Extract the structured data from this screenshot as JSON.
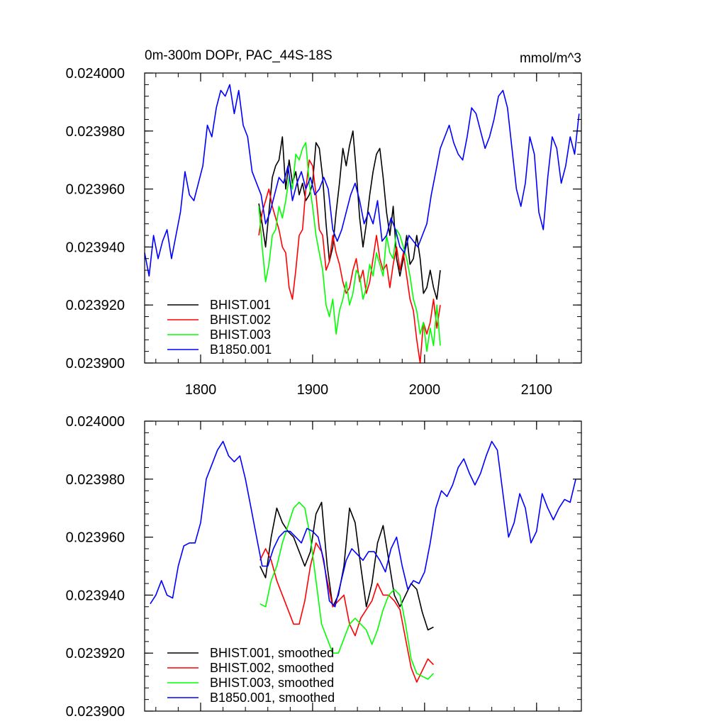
{
  "chart_data": [
    {
      "type": "line",
      "title": "0m-300m DOPr, PAC_44S-18S",
      "units": "mmol/m^3",
      "xlim": [
        1750,
        2140
      ],
      "ylim": [
        0.0239,
        0.024
      ],
      "x_ticks": [
        1800,
        1900,
        2000,
        2100
      ],
      "x_tick_labels": [
        "1800",
        "1900",
        "2000",
        "2100"
      ],
      "y_ticks": [
        0.0239,
        0.02392,
        0.02394,
        0.02396,
        0.02398,
        0.024
      ],
      "y_tick_labels": [
        "0.023900",
        "0.023920",
        "0.023940",
        "0.023960",
        "0.023980",
        "0.024000"
      ],
      "legend_position": "bottom-left",
      "series": [
        {
          "name": "BHIST.001",
          "color": "#000000",
          "x": [
            1852,
            1855,
            1858,
            1861,
            1864,
            1867,
            1870,
            1873,
            1876,
            1879,
            1882,
            1885,
            1888,
            1891,
            1894,
            1897,
            1900,
            1903,
            1906,
            1909,
            1912,
            1915,
            1918,
            1921,
            1924,
            1927,
            1930,
            1933,
            1936,
            1939,
            1942,
            1945,
            1948,
            1951,
            1954,
            1957,
            1960,
            1963,
            1966,
            1969,
            1972,
            1975,
            1978,
            1981,
            1984,
            1987,
            1990,
            1993,
            1996,
            1999,
            2002,
            2005,
            2008,
            2011,
            2014
          ],
          "y": [
            0.023955,
            0.023948,
            0.02394,
            0.023952,
            0.023964,
            0.023968,
            0.02397,
            0.023978,
            0.02396,
            0.02397,
            0.023962,
            0.023966,
            0.023958,
            0.023962,
            0.023956,
            0.023958,
            0.023962,
            0.023976,
            0.023974,
            0.023964,
            0.023948,
            0.023935,
            0.02394,
            0.023952,
            0.023962,
            0.023974,
            0.023968,
            0.023975,
            0.02398,
            0.023966,
            0.02395,
            0.02394,
            0.023948,
            0.023958,
            0.023966,
            0.023972,
            0.023974,
            0.023964,
            0.023952,
            0.023944,
            0.023954,
            0.023936,
            0.02393,
            0.023936,
            0.023944,
            0.023934,
            0.023936,
            0.023944,
            0.023936,
            0.023924,
            0.023926,
            0.023932,
            0.023926,
            0.023922,
            0.023932
          ]
        },
        {
          "name": "BHIST.002",
          "color": "#ff0000",
          "x": [
            1852,
            1855,
            1858,
            1861,
            1864,
            1867,
            1870,
            1873,
            1876,
            1879,
            1882,
            1885,
            1888,
            1891,
            1894,
            1897,
            1900,
            1903,
            1906,
            1909,
            1912,
            1915,
            1918,
            1921,
            1924,
            1927,
            1930,
            1933,
            1936,
            1939,
            1942,
            1945,
            1948,
            1951,
            1954,
            1957,
            1960,
            1963,
            1966,
            1969,
            1972,
            1975,
            1978,
            1981,
            1984,
            1987,
            1990,
            1993,
            1996,
            1999,
            2002,
            2005,
            2008,
            2011,
            2014
          ],
          "y": [
            0.023944,
            0.023952,
            0.023956,
            0.02396,
            0.023954,
            0.02395,
            0.023946,
            0.02394,
            0.023938,
            0.023926,
            0.023922,
            0.023932,
            0.023944,
            0.023946,
            0.02396,
            0.02397,
            0.023968,
            0.023958,
            0.023946,
            0.023944,
            0.023932,
            0.023935,
            0.023944,
            0.023938,
            0.023934,
            0.023928,
            0.023924,
            0.023926,
            0.023932,
            0.023936,
            0.023928,
            0.023932,
            0.023924,
            0.023928,
            0.023936,
            0.023944,
            0.023936,
            0.023932,
            0.023934,
            0.023926,
            0.023934,
            0.02394,
            0.023932,
            0.023938,
            0.02393,
            0.023922,
            0.023918,
            0.023908,
            0.0239,
            0.023914,
            0.02391,
            0.023914,
            0.023922,
            0.023912,
            0.02392
          ]
        },
        {
          "name": "BHIST.003",
          "color": "#00ff00",
          "x": [
            1852,
            1855,
            1858,
            1861,
            1864,
            1867,
            1870,
            1873,
            1876,
            1879,
            1882,
            1885,
            1888,
            1891,
            1894,
            1897,
            1900,
            1903,
            1906,
            1909,
            1912,
            1915,
            1918,
            1921,
            1924,
            1927,
            1930,
            1933,
            1936,
            1939,
            1942,
            1945,
            1948,
            1951,
            1954,
            1957,
            1960,
            1963,
            1966,
            1969,
            1972,
            1975,
            1978,
            1981,
            1984,
            1987,
            1990,
            1993,
            1996,
            1999,
            2002,
            2005,
            2008,
            2011,
            2014
          ],
          "y": [
            0.023954,
            0.02394,
            0.023928,
            0.023934,
            0.023944,
            0.023946,
            0.023954,
            0.02395,
            0.023956,
            0.023964,
            0.02396,
            0.023972,
            0.02397,
            0.023974,
            0.023976,
            0.023962,
            0.023954,
            0.023944,
            0.023938,
            0.023932,
            0.02392,
            0.023916,
            0.023922,
            0.02391,
            0.023918,
            0.023922,
            0.023928,
            0.02392,
            0.023924,
            0.023932,
            0.02393,
            0.023922,
            0.023926,
            0.023934,
            0.02393,
            0.023938,
            0.023934,
            0.02393,
            0.023944,
            0.023938,
            0.023936,
            0.023946,
            0.023944,
            0.02394,
            0.023936,
            0.02393,
            0.023922,
            0.023918,
            0.02391,
            0.023914,
            0.023904,
            0.023912,
            0.023906,
            0.02392,
            0.023906
          ]
        },
        {
          "name": "B1850.001",
          "color": "#0000ff",
          "x": [
            1750,
            1754,
            1758,
            1762,
            1766,
            1770,
            1774,
            1778,
            1782,
            1786,
            1790,
            1794,
            1798,
            1802,
            1806,
            1810,
            1814,
            1818,
            1822,
            1826,
            1830,
            1834,
            1838,
            1842,
            1846,
            1850,
            1854,
            1858,
            1862,
            1866,
            1870,
            1874,
            1878,
            1882,
            1886,
            1890,
            1894,
            1898,
            1902,
            1906,
            1910,
            1914,
            1918,
            1922,
            1926,
            1930,
            1934,
            1938,
            1942,
            1946,
            1950,
            1954,
            1958,
            1962,
            1966,
            1970,
            1974,
            1978,
            1982,
            1986,
            1990,
            1994,
            1998,
            2002,
            2006,
            2010,
            2014,
            2018,
            2022,
            2026,
            2030,
            2034,
            2038,
            2042,
            2046,
            2050,
            2054,
            2058,
            2062,
            2066,
            2070,
            2074,
            2078,
            2082,
            2086,
            2090,
            2094,
            2098,
            2102,
            2106,
            2110,
            2114,
            2118,
            2122,
            2126,
            2130,
            2134,
            2138
          ],
          "y": [
            0.023938,
            0.02393,
            0.023944,
            0.023936,
            0.023942,
            0.023946,
            0.023936,
            0.023944,
            0.023952,
            0.023966,
            0.023958,
            0.023956,
            0.023962,
            0.023968,
            0.023982,
            0.023978,
            0.023988,
            0.023994,
            0.023992,
            0.023996,
            0.023986,
            0.023994,
            0.023982,
            0.023978,
            0.023966,
            0.023962,
            0.023958,
            0.023948,
            0.023952,
            0.023958,
            0.023964,
            0.023962,
            0.023968,
            0.023956,
            0.023962,
            0.023966,
            0.02396,
            0.023964,
            0.023958,
            0.02396,
            0.023964,
            0.02396,
            0.023946,
            0.023942,
            0.023946,
            0.023952,
            0.023958,
            0.023962,
            0.023956,
            0.023948,
            0.023952,
            0.023948,
            0.023956,
            0.023942,
            0.023944,
            0.02395,
            0.023946,
            0.02394,
            0.023938,
            0.023944,
            0.023942,
            0.02394,
            0.023944,
            0.023948,
            0.023958,
            0.023966,
            0.023974,
            0.023978,
            0.023982,
            0.023976,
            0.023972,
            0.02397,
            0.023978,
            0.023988,
            0.023986,
            0.02398,
            0.023974,
            0.023978,
            0.023984,
            0.023992,
            0.023994,
            0.023988,
            0.023974,
            0.02396,
            0.023954,
            0.023962,
            0.023978,
            0.023972,
            0.023952,
            0.023946,
            0.023964,
            0.023978,
            0.023974,
            0.023962,
            0.023968,
            0.023978,
            0.023972,
            0.023986
          ]
        }
      ]
    },
    {
      "type": "line",
      "xlim": [
        1750,
        2140
      ],
      "ylim": [
        0.0239,
        0.024
      ],
      "x_ticks": [
        1800,
        1900,
        2000,
        2100
      ],
      "y_ticks": [
        0.0239,
        0.02392,
        0.02394,
        0.02396,
        0.02398,
        0.024
      ],
      "y_tick_labels": [
        "0.023900",
        "0.023920",
        "0.023940",
        "0.023960",
        "0.023980",
        "0.024000"
      ],
      "legend_position": "bottom-left",
      "series": [
        {
          "name": "BHIST.001, smoothed",
          "color": "#000000",
          "x": [
            1853,
            1858,
            1863,
            1868,
            1873,
            1878,
            1883,
            1888,
            1893,
            1898,
            1903,
            1908,
            1913,
            1918,
            1923,
            1928,
            1933,
            1938,
            1943,
            1948,
            1953,
            1958,
            1963,
            1968,
            1973,
            1978,
            1983,
            1988,
            1993,
            1998,
            2003,
            2008
          ],
          "y": [
            0.02395,
            0.023946,
            0.02396,
            0.02397,
            0.023965,
            0.023962,
            0.02396,
            0.023955,
            0.02395,
            0.023955,
            0.023968,
            0.023972,
            0.02395,
            0.023936,
            0.02394,
            0.02395,
            0.02397,
            0.023965,
            0.02395,
            0.023936,
            0.023944,
            0.023958,
            0.023964,
            0.023952,
            0.02394,
            0.023936,
            0.02394,
            0.023944,
            0.023942,
            0.023934,
            0.023928,
            0.023929
          ]
        },
        {
          "name": "BHIST.002, smoothed",
          "color": "#ff0000",
          "x": [
            1853,
            1858,
            1863,
            1868,
            1873,
            1878,
            1883,
            1888,
            1893,
            1898,
            1903,
            1908,
            1913,
            1918,
            1923,
            1928,
            1933,
            1938,
            1943,
            1948,
            1953,
            1958,
            1963,
            1968,
            1973,
            1978,
            1983,
            1988,
            1993,
            1998,
            2003,
            2008
          ],
          "y": [
            0.023952,
            0.023956,
            0.023952,
            0.023945,
            0.02394,
            0.023935,
            0.02393,
            0.02393,
            0.023938,
            0.02395,
            0.023958,
            0.023955,
            0.023945,
            0.023936,
            0.023938,
            0.02394,
            0.02393,
            0.023926,
            0.023932,
            0.023935,
            0.023938,
            0.023944,
            0.02394,
            0.02394,
            0.023938,
            0.023935,
            0.023925,
            0.023915,
            0.02391,
            0.023914,
            0.023918,
            0.023916
          ]
        },
        {
          "name": "BHIST.003, smoothed",
          "color": "#00ff00",
          "x": [
            1853,
            1858,
            1863,
            1868,
            1873,
            1878,
            1883,
            1888,
            1893,
            1898,
            1903,
            1908,
            1913,
            1918,
            1923,
            1928,
            1933,
            1938,
            1943,
            1948,
            1953,
            1958,
            1963,
            1968,
            1973,
            1978,
            1983,
            1988,
            1993,
            1998,
            2003,
            2008
          ],
          "y": [
            0.023937,
            0.023936,
            0.023945,
            0.02395,
            0.023958,
            0.023964,
            0.02397,
            0.023972,
            0.02397,
            0.02396,
            0.023945,
            0.02393,
            0.023925,
            0.02392,
            0.02392,
            0.023925,
            0.02393,
            0.023932,
            0.02393,
            0.023928,
            0.023923,
            0.023928,
            0.023935,
            0.02394,
            0.023942,
            0.02394,
            0.02393,
            0.023918,
            0.023913,
            0.023912,
            0.023911,
            0.023913
          ]
        },
        {
          "name": "B1850.001, smoothed",
          "color": "#0000ff",
          "x": [
            1755,
            1760,
            1765,
            1770,
            1775,
            1780,
            1785,
            1790,
            1795,
            1800,
            1805,
            1810,
            1815,
            1820,
            1825,
            1830,
            1835,
            1840,
            1845,
            1850,
            1855,
            1860,
            1865,
            1870,
            1875,
            1880,
            1885,
            1890,
            1895,
            1900,
            1905,
            1910,
            1915,
            1920,
            1925,
            1930,
            1935,
            1940,
            1945,
            1950,
            1955,
            1960,
            1965,
            1970,
            1975,
            1980,
            1985,
            1990,
            1995,
            2000,
            2005,
            2010,
            2015,
            2020,
            2025,
            2030,
            2035,
            2040,
            2045,
            2050,
            2055,
            2060,
            2065,
            2070,
            2075,
            2080,
            2085,
            2090,
            2095,
            2100,
            2105,
            2110,
            2115,
            2120,
            2125,
            2130,
            2135
          ],
          "y": [
            0.023937,
            0.02394,
            0.023945,
            0.02394,
            0.023939,
            0.02395,
            0.023957,
            0.023958,
            0.023958,
            0.023965,
            0.02398,
            0.023985,
            0.02399,
            0.023993,
            0.023988,
            0.023986,
            0.023988,
            0.02398,
            0.02397,
            0.02396,
            0.02395,
            0.02395,
            0.023956,
            0.02396,
            0.023962,
            0.023962,
            0.02396,
            0.023958,
            0.023963,
            0.023962,
            0.02396,
            0.023952,
            0.023938,
            0.023936,
            0.023944,
            0.023952,
            0.023956,
            0.023954,
            0.023952,
            0.023955,
            0.023955,
            0.023952,
            0.023948,
            0.023956,
            0.02396,
            0.02395,
            0.023942,
            0.023945,
            0.023944,
            0.023948,
            0.023958,
            0.02397,
            0.023976,
            0.023974,
            0.023978,
            0.023984,
            0.023987,
            0.023982,
            0.023978,
            0.023982,
            0.023988,
            0.023993,
            0.02399,
            0.023975,
            0.02396,
            0.023965,
            0.023975,
            0.02397,
            0.023958,
            0.023962,
            0.023975,
            0.02397,
            0.023966,
            0.02397,
            0.023973,
            0.023972,
            0.02398
          ]
        }
      ]
    }
  ]
}
